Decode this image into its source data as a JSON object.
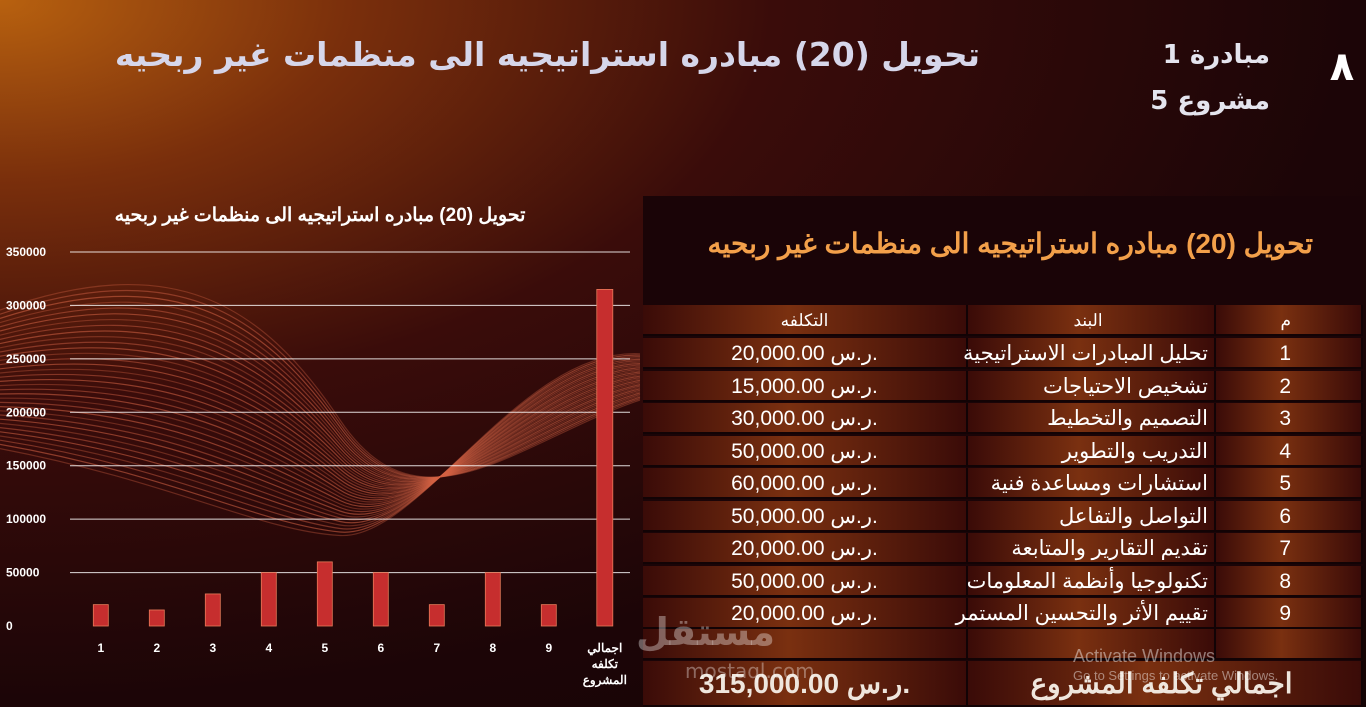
{
  "header": {
    "title": "تحويل (20) مبادره استراتيجيه الى منظمات غير ربحيه",
    "initiative": "مبادرة 1",
    "project": "مشروع 5",
    "slide_number": "٨"
  },
  "chart_data": {
    "type": "bar",
    "title": "تحويل (20) مبادره استراتيجيه الى منظمات غير ربحيه",
    "categories": [
      "1",
      "2",
      "3",
      "4",
      "5",
      "6",
      "7",
      "8",
      "9",
      "اجمالي تكلفه المشروع"
    ],
    "values": [
      20000,
      15000,
      30000,
      50000,
      60000,
      50000,
      20000,
      50000,
      20000,
      315000
    ],
    "ylim": [
      0,
      350000
    ],
    "yticks": [
      "0",
      "50000",
      "100000",
      "150000",
      "200000",
      "250000",
      "300000",
      "350000"
    ],
    "grid": true,
    "bar_color": "#c62e2e"
  },
  "table": {
    "title": "تحويل (20) مبادره استراتيجيه الى منظمات غير ربحيه",
    "headers": {
      "num": "م",
      "item": "البند",
      "cost": "التكلفه"
    },
    "rows": [
      {
        "num": "1",
        "item": "تحليل المبادرات الاستراتيجية",
        "cost": "20,000.00 ر.س."
      },
      {
        "num": "2",
        "item": "تشخيص الاحتياجات",
        "cost": "15,000.00 ر.س."
      },
      {
        "num": "3",
        "item": "التصميم والتخطيط",
        "cost": "30,000.00 ر.س."
      },
      {
        "num": "4",
        "item": "التدريب والتطوير",
        "cost": "50,000.00 ر.س."
      },
      {
        "num": "5",
        "item": "استشارات ومساعدة فنية",
        "cost": "60,000.00 ر.س."
      },
      {
        "num": "6",
        "item": "التواصل والتفاعل",
        "cost": "50,000.00 ر.س."
      },
      {
        "num": "7",
        "item": "تقديم التقارير والمتابعة",
        "cost": "20,000.00 ر.س."
      },
      {
        "num": "8",
        "item": "تكنولوجيا وأنظمة المعلومات",
        "cost": "50,000.00 ر.س."
      },
      {
        "num": "9",
        "item": "تقييم الأثر والتحسين المستمر",
        "cost": "20,000.00 ر.س."
      }
    ],
    "total_label": "اجمالي تكلفه المشروع",
    "total_value": "315,000.00 ر.س."
  },
  "watermark": {
    "brand": "مستقل",
    "site": "mostaql.com"
  },
  "activate": {
    "line1": "Activate Windows",
    "line2": "Go to Settings to activate Windows."
  },
  "colors": {
    "title": "#f3a04a",
    "bars": "#c62e2e",
    "background": "#1c0507"
  }
}
